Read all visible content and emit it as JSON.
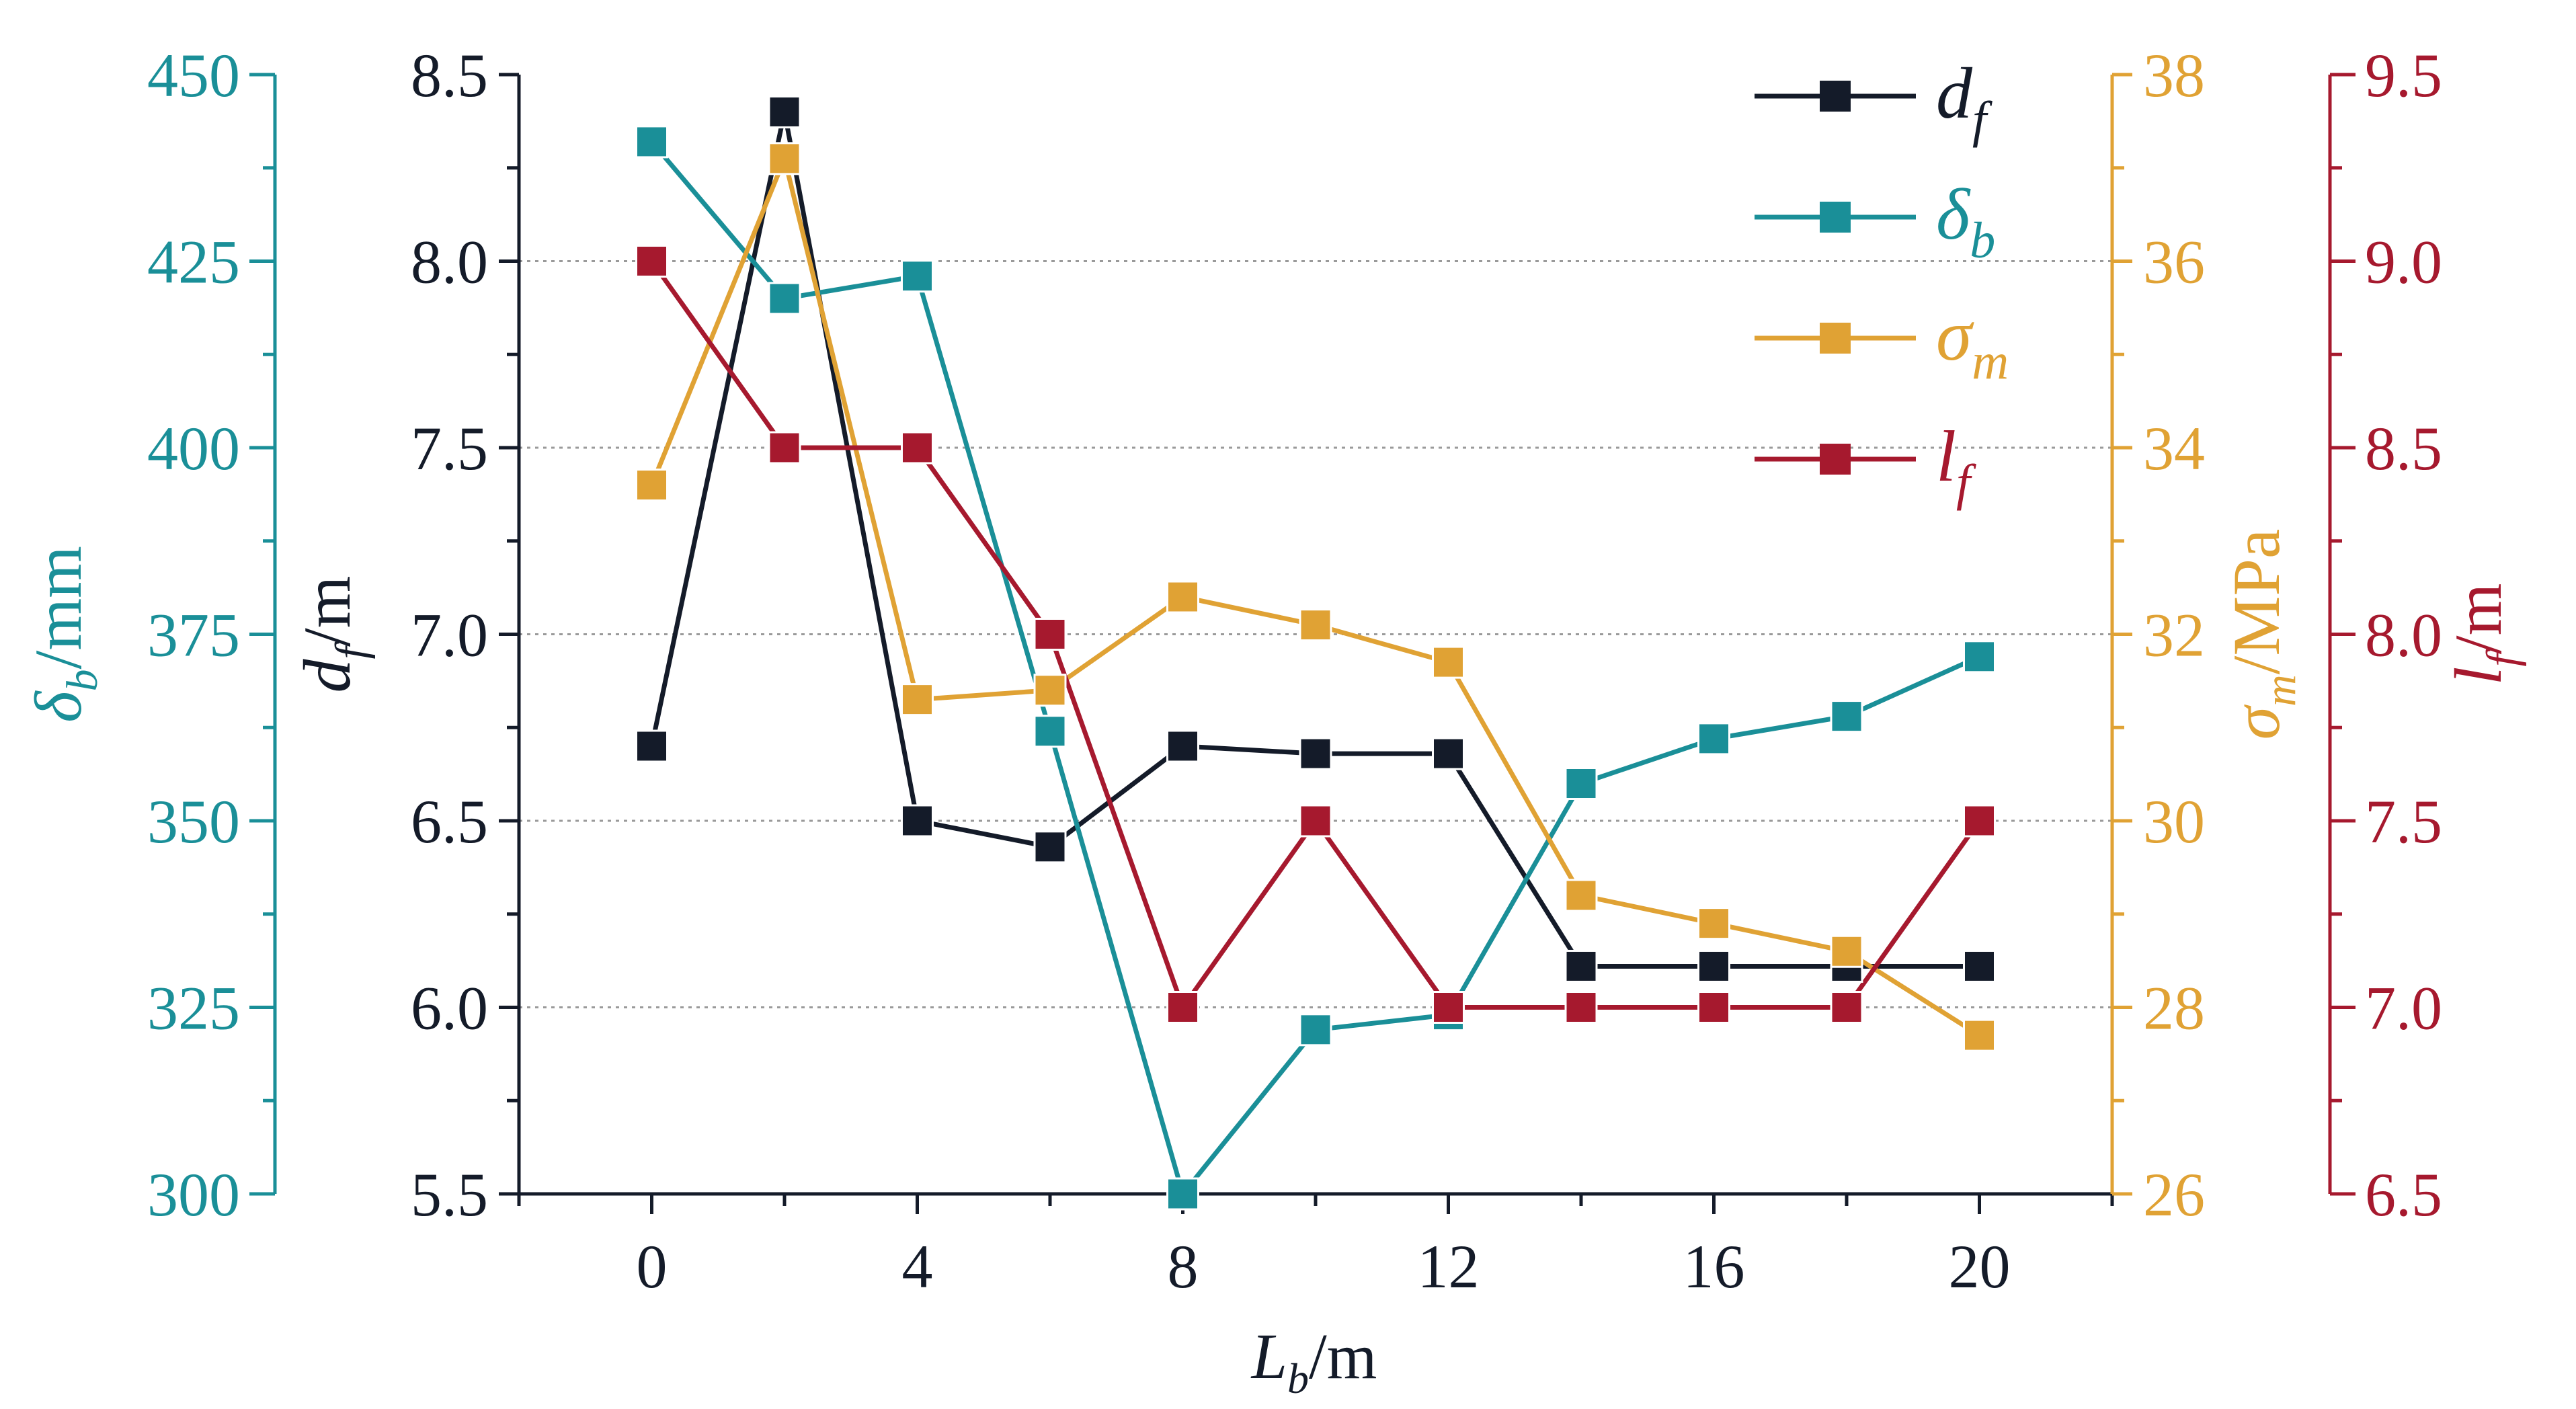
{
  "chart_data": {
    "type": "line",
    "x": [
      0,
      2,
      4,
      6,
      8,
      10,
      12,
      14,
      16,
      18,
      20
    ],
    "xlim": [
      -2,
      22
    ],
    "xticks": [
      0,
      4,
      8,
      12,
      16,
      20
    ],
    "xlabel": {
      "main": "L",
      "sub": "b",
      "unit": "/m"
    },
    "grid": true,
    "legend_position": "top-right",
    "series": [
      {
        "name": "d_f",
        "legend": {
          "main": "d",
          "sub": "f"
        },
        "color": "#141b29",
        "axis": "left-inner",
        "values": [
          6.7,
          8.4,
          6.5,
          6.43,
          6.7,
          6.68,
          6.68,
          6.11,
          6.11,
          6.11,
          6.11
        ]
      },
      {
        "name": "delta_b",
        "legend": {
          "main": "δ",
          "sub": "b"
        },
        "color": "#1a8f98",
        "axis": "left-outer",
        "values": [
          441,
          420,
          423,
          362,
          300,
          322,
          324,
          355,
          361,
          364,
          372
        ]
      },
      {
        "name": "sigma_m",
        "legend": {
          "main": "σ",
          "sub": "m"
        },
        "color": "#e0a234",
        "axis": "right-inner",
        "values": [
          33.6,
          37.1,
          31.3,
          31.4,
          32.4,
          32.1,
          31.7,
          29.2,
          28.9,
          28.6,
          27.7
        ]
      },
      {
        "name": "l_f",
        "legend": {
          "main": "l",
          "sub": "f"
        },
        "color": "#a6192e",
        "axis": "right-outer",
        "values": [
          9.0,
          8.5,
          8.5,
          8.0,
          7.0,
          7.5,
          7.0,
          7.0,
          7.0,
          7.0,
          7.5
        ]
      }
    ],
    "axes": {
      "left-outer": {
        "color": "#1a8f98",
        "ylim": [
          300,
          450
        ],
        "ticks": [
          300,
          325,
          350,
          375,
          400,
          425,
          450
        ],
        "tick_labels": [
          "300",
          "325",
          "350",
          "375",
          "400",
          "425",
          "450"
        ],
        "label": {
          "main": "δ",
          "sub": "b",
          "unit": "/mm"
        }
      },
      "left-inner": {
        "color": "#141b29",
        "ylim": [
          5.5,
          8.5
        ],
        "ticks": [
          5.5,
          6.0,
          6.5,
          7.0,
          7.5,
          8.0,
          8.5
        ],
        "tick_labels": [
          "5.5",
          "6.0",
          "6.5",
          "7.0",
          "7.5",
          "8.0",
          "8.5"
        ],
        "label": {
          "main": "d",
          "sub": "f",
          "unit": "/m"
        }
      },
      "right-inner": {
        "color": "#e0a234",
        "ylim": [
          26,
          38
        ],
        "ticks": [
          26,
          28,
          30,
          32,
          34,
          36,
          38
        ],
        "tick_labels": [
          "26",
          "28",
          "30",
          "32",
          "34",
          "36",
          "38"
        ],
        "label": {
          "main": "σ",
          "sub": "m",
          "unit": "/MPa"
        }
      },
      "right-outer": {
        "color": "#a6192e",
        "ylim": [
          6.5,
          9.5
        ],
        "ticks": [
          6.5,
          7.0,
          7.5,
          8.0,
          8.5,
          9.0,
          9.5
        ],
        "tick_labels": [
          "6.5",
          "7.0",
          "7.5",
          "8.0",
          "8.5",
          "9.0",
          "9.5"
        ],
        "label": {
          "main": "l",
          "sub": "f",
          "unit": "/m"
        }
      }
    }
  }
}
